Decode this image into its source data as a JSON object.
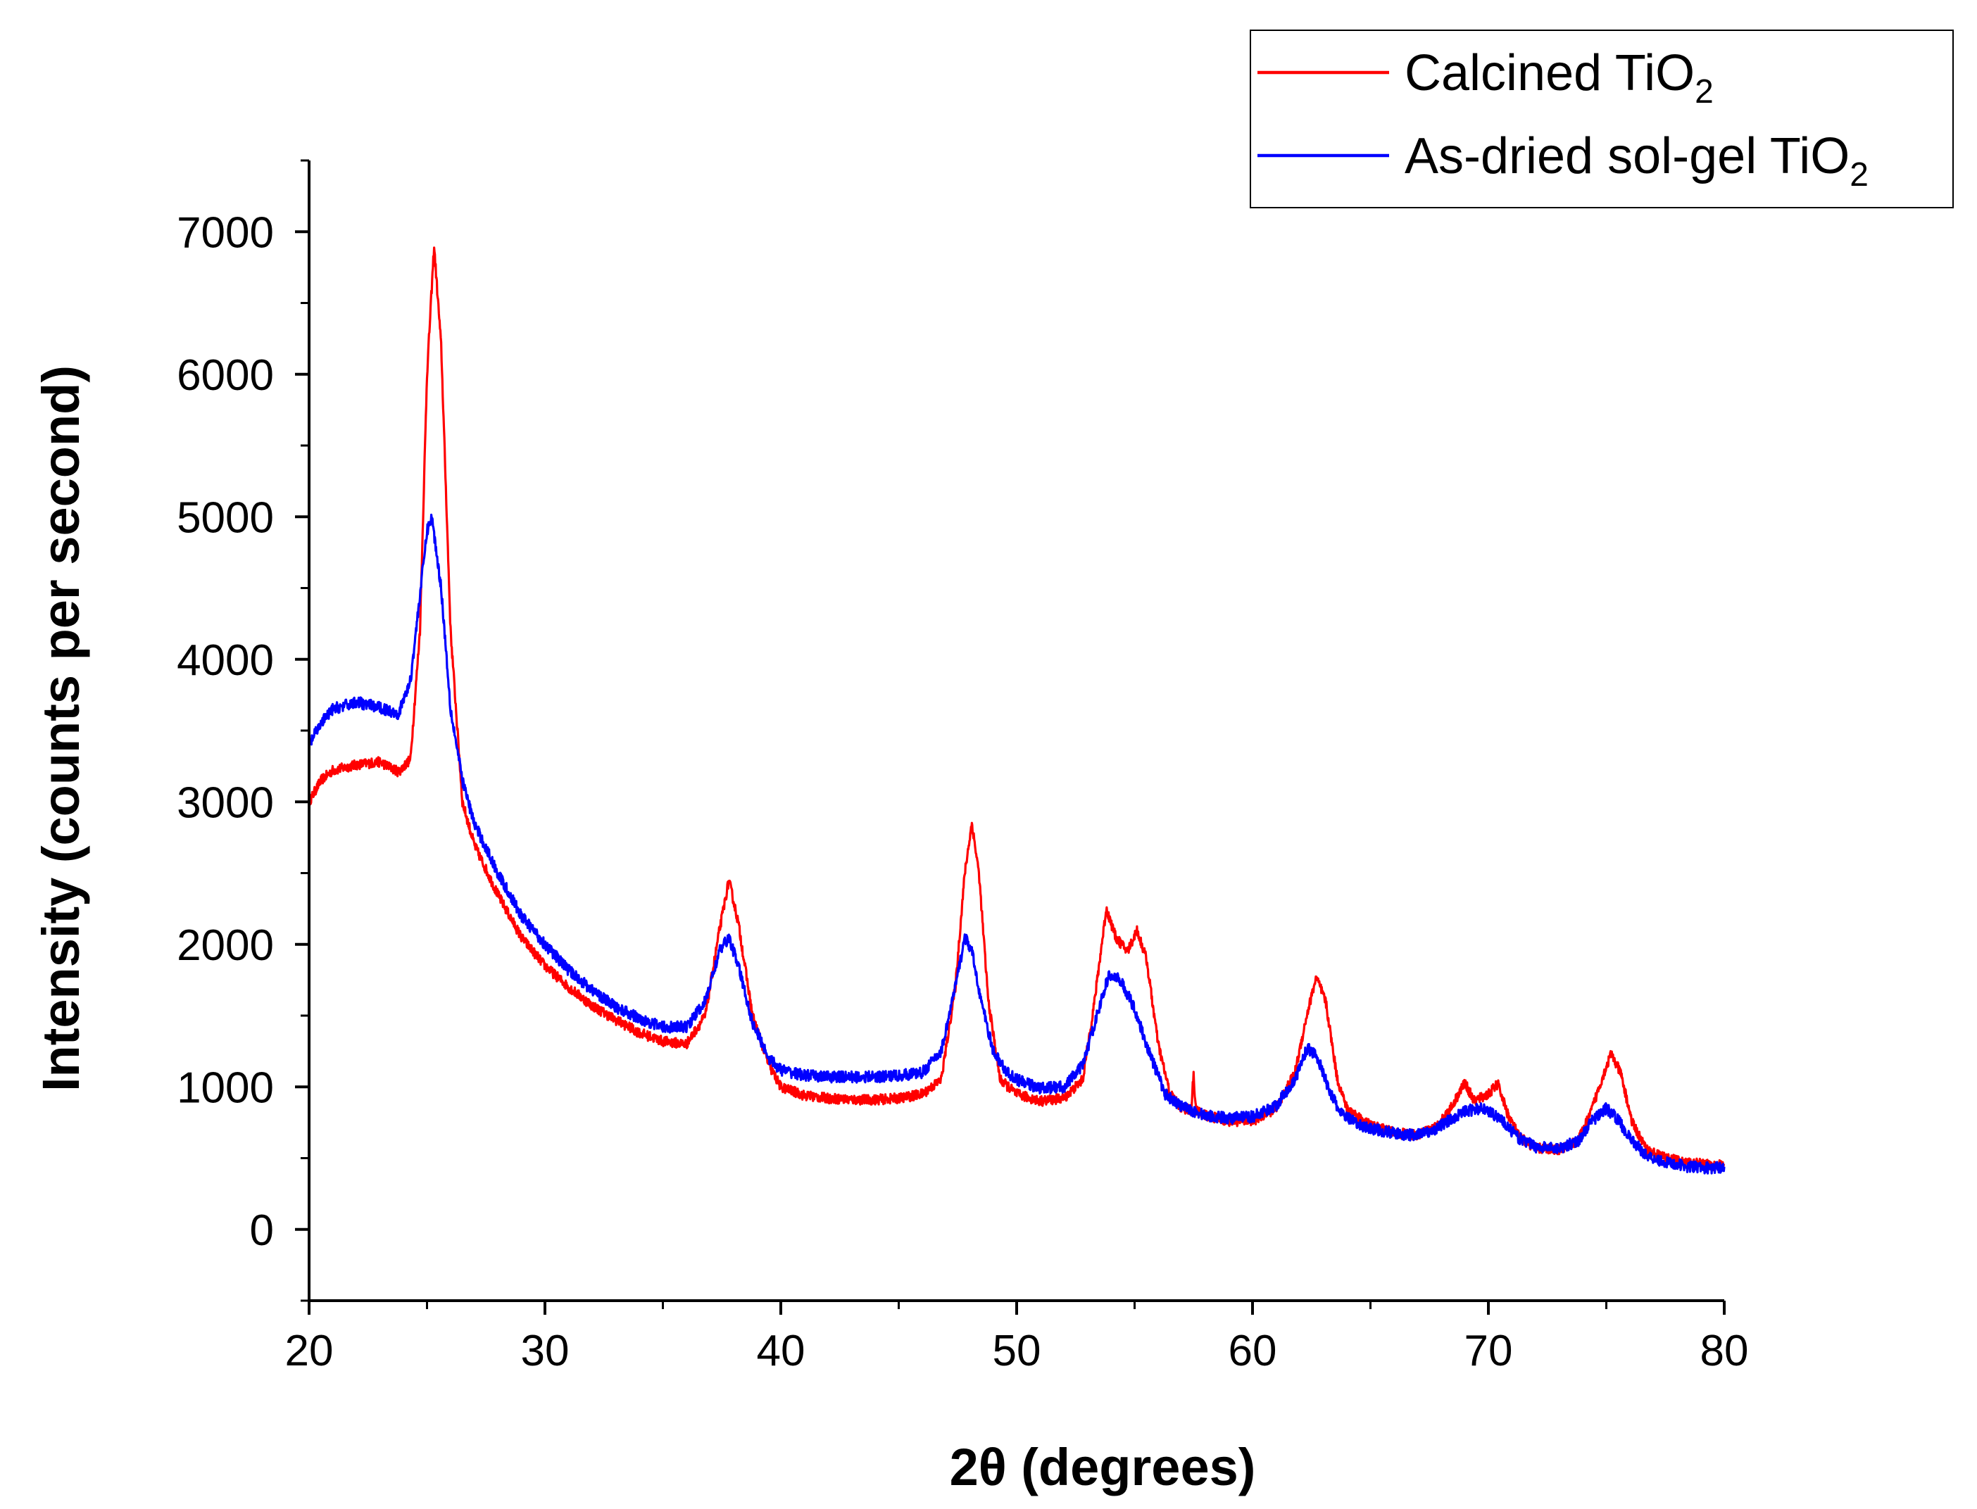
{
  "chart_data": {
    "type": "line",
    "title": "",
    "xlabel": "2θ (degrees)",
    "ylabel": "Intensity (counts per second)",
    "xlim": [
      20,
      80
    ],
    "ylim": [
      -500,
      7500
    ],
    "x_ticks": [
      20,
      30,
      40,
      50,
      60,
      70,
      80
    ],
    "x_tick_labels": [
      "20",
      "30",
      "40",
      "50",
      "60",
      "70",
      "80"
    ],
    "y_ticks": [
      0,
      1000,
      2000,
      3000,
      4000,
      5000,
      6000,
      7000
    ],
    "y_tick_labels": [
      "0",
      "1000",
      "2000",
      "3000",
      "4000",
      "5000",
      "6000",
      "7000"
    ],
    "grid": false,
    "legend_position": "top-right",
    "series": [
      {
        "name": "Calcined TiO2",
        "legend_base": "Calcined TiO",
        "legend_sub": "2",
        "color": "#ff0000",
        "noise": 35,
        "points": [
          [
            20,
            3000
          ],
          [
            20.5,
            3150
          ],
          [
            21,
            3220
          ],
          [
            22,
            3260
          ],
          [
            23,
            3280
          ],
          [
            23.8,
            3210
          ],
          [
            24.3,
            3300
          ],
          [
            24.7,
            4200
          ],
          [
            25.0,
            6000
          ],
          [
            25.3,
            6900
          ],
          [
            25.6,
            6200
          ],
          [
            26.0,
            4200
          ],
          [
            26.5,
            3000
          ],
          [
            27,
            2700
          ],
          [
            28,
            2350
          ],
          [
            29,
            2050
          ],
          [
            30,
            1850
          ],
          [
            31,
            1700
          ],
          [
            32,
            1570
          ],
          [
            33,
            1470
          ],
          [
            34,
            1380
          ],
          [
            35,
            1320
          ],
          [
            36,
            1300
          ],
          [
            36.8,
            1500
          ],
          [
            37.4,
            2100
          ],
          [
            37.8,
            2450
          ],
          [
            38.2,
            2150
          ],
          [
            38.8,
            1500
          ],
          [
            39.5,
            1150
          ],
          [
            40,
            1000
          ],
          [
            41,
            940
          ],
          [
            42,
            920
          ],
          [
            43,
            910
          ],
          [
            44,
            910
          ],
          [
            45,
            920
          ],
          [
            46,
            950
          ],
          [
            46.8,
            1050
          ],
          [
            47.4,
            1700
          ],
          [
            47.8,
            2500
          ],
          [
            48.1,
            2850
          ],
          [
            48.4,
            2500
          ],
          [
            48.8,
            1600
          ],
          [
            49.3,
            1050
          ],
          [
            50,
            950
          ],
          [
            51,
            900
          ],
          [
            52,
            920
          ],
          [
            52.8,
            1050
          ],
          [
            53.3,
            1600
          ],
          [
            53.8,
            2250
          ],
          [
            54.2,
            2050
          ],
          [
            54.7,
            1950
          ],
          [
            55.1,
            2100
          ],
          [
            55.5,
            1900
          ],
          [
            56,
            1300
          ],
          [
            56.5,
            950
          ],
          [
            57,
            850
          ],
          [
            57.4,
            840
          ],
          [
            57.5,
            1080
          ],
          [
            57.6,
            840
          ],
          [
            58,
            800
          ],
          [
            59,
            760
          ],
          [
            60,
            760
          ],
          [
            61,
            850
          ],
          [
            61.8,
            1100
          ],
          [
            62.3,
            1500
          ],
          [
            62.7,
            1770
          ],
          [
            63.1,
            1600
          ],
          [
            63.6,
            1050
          ],
          [
            64,
            850
          ],
          [
            65,
            730
          ],
          [
            66,
            680
          ],
          [
            67,
            660
          ],
          [
            67.8,
            720
          ],
          [
            68.4,
            850
          ],
          [
            69,
            1030
          ],
          [
            69.4,
            900
          ],
          [
            70,
            950
          ],
          [
            70.4,
            1020
          ],
          [
            70.8,
            820
          ],
          [
            71.3,
            650
          ],
          [
            72,
            570
          ],
          [
            73,
            560
          ],
          [
            73.8,
            620
          ],
          [
            74.3,
            800
          ],
          [
            74.8,
            1050
          ],
          [
            75.2,
            1230
          ],
          [
            75.6,
            1100
          ],
          [
            76.1,
            750
          ],
          [
            76.7,
            560
          ],
          [
            77.5,
            500
          ],
          [
            78.5,
            470
          ],
          [
            79.5,
            450
          ],
          [
            80,
            450
          ]
        ]
      },
      {
        "name": "As-dried sol-gel TiO2",
        "legend_base": "As-dried sol-gel TiO",
        "legend_sub": "2",
        "color": "#0000ff",
        "noise": 40,
        "points": [
          [
            20,
            3400
          ],
          [
            20.5,
            3550
          ],
          [
            21,
            3650
          ],
          [
            22,
            3700
          ],
          [
            23,
            3660
          ],
          [
            23.8,
            3620
          ],
          [
            24.3,
            3850
          ],
          [
            24.7,
            4450
          ],
          [
            25.0,
            4900
          ],
          [
            25.2,
            5000
          ],
          [
            25.6,
            4500
          ],
          [
            26.0,
            3650
          ],
          [
            26.5,
            3150
          ],
          [
            27,
            2850
          ],
          [
            28,
            2500
          ],
          [
            29,
            2200
          ],
          [
            30,
            2000
          ],
          [
            31,
            1820
          ],
          [
            32,
            1680
          ],
          [
            33,
            1560
          ],
          [
            34,
            1480
          ],
          [
            35,
            1420
          ],
          [
            36,
            1420
          ],
          [
            36.8,
            1600
          ],
          [
            37.4,
            1950
          ],
          [
            37.8,
            2050
          ],
          [
            38.2,
            1850
          ],
          [
            38.8,
            1450
          ],
          [
            39.5,
            1200
          ],
          [
            40,
            1120
          ],
          [
            41,
            1080
          ],
          [
            42,
            1070
          ],
          [
            43,
            1070
          ],
          [
            44,
            1070
          ],
          [
            45,
            1080
          ],
          [
            46,
            1100
          ],
          [
            46.8,
            1250
          ],
          [
            47.4,
            1700
          ],
          [
            47.8,
            2050
          ],
          [
            48.1,
            1950
          ],
          [
            48.5,
            1600
          ],
          [
            49,
            1250
          ],
          [
            49.6,
            1100
          ],
          [
            50,
            1050
          ],
          [
            51,
            990
          ],
          [
            52,
            1000
          ],
          [
            52.8,
            1150
          ],
          [
            53.4,
            1500
          ],
          [
            53.9,
            1780
          ],
          [
            54.4,
            1750
          ],
          [
            55,
            1550
          ],
          [
            55.6,
            1250
          ],
          [
            56.3,
            950
          ],
          [
            57,
            860
          ],
          [
            58,
            800
          ],
          [
            59,
            780
          ],
          [
            60,
            790
          ],
          [
            61,
            870
          ],
          [
            61.8,
            1050
          ],
          [
            62.3,
            1270
          ],
          [
            62.7,
            1230
          ],
          [
            63.2,
            1000
          ],
          [
            63.7,
            820
          ],
          [
            64.5,
            730
          ],
          [
            65.5,
            690
          ],
          [
            66.5,
            660
          ],
          [
            67.5,
            680
          ],
          [
            68.3,
            760
          ],
          [
            69,
            830
          ],
          [
            69.8,
            850
          ],
          [
            70.5,
            780
          ],
          [
            71.2,
            650
          ],
          [
            72,
            580
          ],
          [
            73,
            570
          ],
          [
            73.8,
            620
          ],
          [
            74.4,
            760
          ],
          [
            75,
            850
          ],
          [
            75.5,
            770
          ],
          [
            76,
            640
          ],
          [
            76.7,
            520
          ],
          [
            77.5,
            470
          ],
          [
            78.5,
            440
          ],
          [
            79.5,
            430
          ],
          [
            80,
            440
          ]
        ]
      }
    ]
  }
}
